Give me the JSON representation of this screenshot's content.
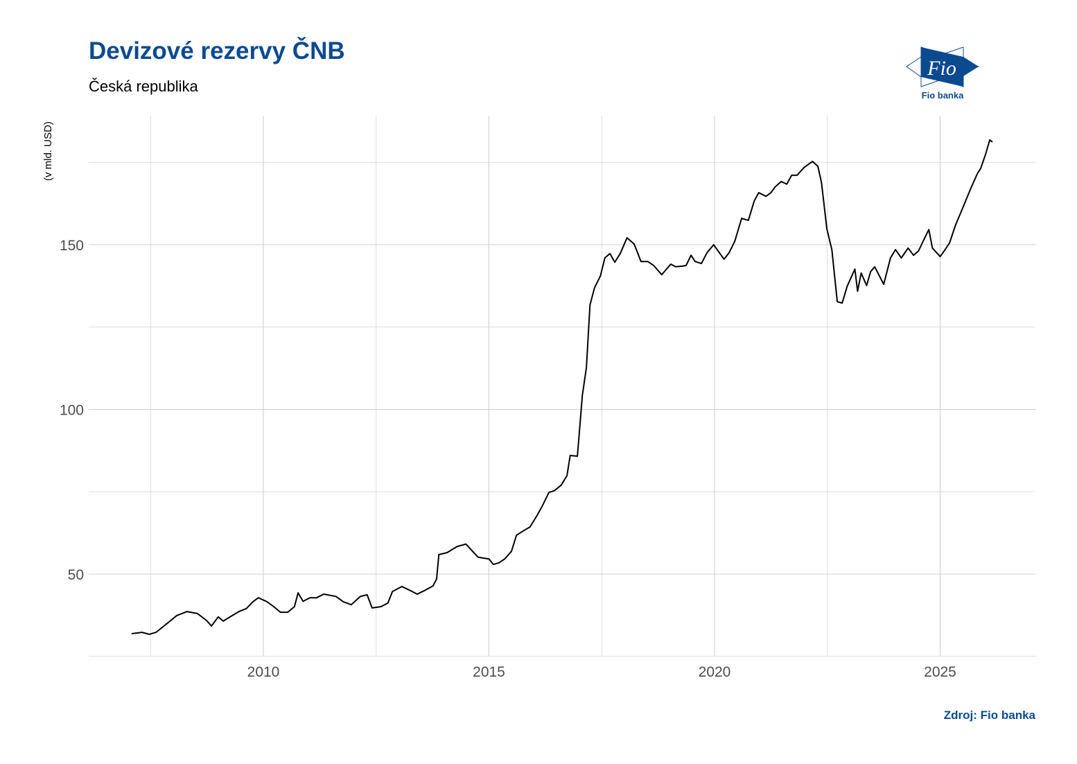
{
  "title": "Devizové rezervy ČNB",
  "subtitle": "Česká republika",
  "source": "Zdroj: Fio banka",
  "logo": {
    "text": "Fio",
    "caption": "Fio banka",
    "color": "#0b4a8f"
  },
  "chart_data": {
    "type": "line",
    "title": "Devizové rezervy ČNB",
    "subtitle": "Česká republika",
    "ylabel": "(v mld. USD)",
    "xlabel": "",
    "xlim": [
      2006.3,
      2027.3
    ],
    "ylim": [
      25.2,
      189
    ],
    "xticks": [
      2010,
      2015,
      2020,
      2025
    ],
    "xtick_labels": [
      "2010",
      "2015",
      "2020",
      "2025"
    ],
    "yticks": [
      50,
      100,
      150
    ],
    "ytick_labels": [
      "50",
      "100",
      "150"
    ],
    "grid": true,
    "line_color": "#000000",
    "x": [
      2007.08,
      2007.31,
      2007.47,
      2007.62,
      2007.85,
      2008.08,
      2008.31,
      2008.54,
      2008.74,
      2008.85,
      2009.0,
      2009.11,
      2009.31,
      2009.46,
      2009.62,
      2009.77,
      2009.89,
      2010.08,
      2010.23,
      2010.38,
      2010.54,
      2010.69,
      2010.77,
      2010.88,
      2011.03,
      2011.18,
      2011.34,
      2011.61,
      2011.77,
      2011.95,
      2012.15,
      2012.3,
      2012.41,
      2012.61,
      2012.76,
      2012.86,
      2013.07,
      2013.3,
      2013.41,
      2013.56,
      2013.76,
      2013.84,
      2013.89,
      2014.07,
      2014.3,
      2014.49,
      2014.76,
      2015.0,
      2015.1,
      2015.22,
      2015.35,
      2015.5,
      2015.61,
      2015.76,
      2015.91,
      2016.07,
      2016.18,
      2016.33,
      2016.45,
      2016.6,
      2016.73,
      2016.8,
      2016.96,
      2017.07,
      2017.16,
      2017.24,
      2017.34,
      2017.47,
      2017.57,
      2017.68,
      2017.79,
      2017.91,
      2018.06,
      2018.22,
      2018.37,
      2018.52,
      2018.65,
      2018.83,
      2019.03,
      2019.14,
      2019.29,
      2019.37,
      2019.48,
      2019.57,
      2019.71,
      2019.83,
      2019.98,
      2020.21,
      2020.32,
      2020.45,
      2020.6,
      2020.75,
      2020.88,
      2020.98,
      2021.14,
      2021.25,
      2021.34,
      2021.48,
      2021.6,
      2021.71,
      2021.83,
      2021.98,
      2022.17,
      2022.29,
      2022.37,
      2022.49,
      2022.6,
      2022.72,
      2022.83,
      2022.94,
      2023.11,
      2023.17,
      2023.25,
      2023.37,
      2023.46,
      2023.55,
      2023.75,
      2023.9,
      2024.01,
      2024.14,
      2024.29,
      2024.41,
      2024.52,
      2024.68,
      2024.75,
      2024.83,
      2025.0,
      2025.09,
      2025.21,
      2025.34,
      2025.52,
      2025.67,
      2025.83,
      2025.9,
      2026.01,
      2026.1,
      2026.16
    ],
    "values": [
      31.9,
      32.3,
      31.7,
      32.3,
      34.8,
      37.4,
      38.6,
      38.0,
      35.9,
      34.2,
      37.0,
      35.7,
      37.4,
      38.6,
      39.5,
      41.6,
      42.8,
      41.6,
      40.1,
      38.4,
      38.4,
      40.1,
      44.3,
      41.7,
      42.8,
      42.8,
      43.9,
      43.2,
      41.6,
      40.7,
      43.2,
      43.7,
      39.7,
      40.1,
      41.2,
      44.7,
      46.2,
      44.7,
      43.9,
      44.9,
      46.4,
      48.5,
      55.9,
      56.5,
      58.4,
      59.1,
      55.1,
      54.6,
      52.9,
      53.4,
      54.6,
      56.9,
      61.8,
      63.1,
      64.3,
      67.9,
      70.6,
      74.8,
      75.3,
      77.0,
      79.9,
      86.0,
      85.8,
      104.3,
      112.7,
      131.7,
      136.9,
      140.5,
      146.0,
      147.3,
      144.7,
      147.3,
      152.1,
      150.2,
      144.9,
      144.9,
      143.7,
      140.9,
      144.1,
      143.3,
      143.5,
      143.7,
      146.8,
      144.9,
      144.3,
      147.5,
      150.0,
      145.6,
      147.5,
      151.1,
      158.0,
      157.4,
      163.3,
      165.8,
      164.7,
      165.8,
      167.5,
      169.2,
      168.4,
      171.1,
      171.1,
      173.4,
      175.3,
      173.8,
      168.9,
      154.8,
      148.5,
      132.7,
      132.3,
      137.4,
      142.6,
      135.9,
      141.4,
      137.6,
      141.8,
      143.3,
      138.0,
      146.0,
      148.5,
      146.0,
      149.0,
      146.8,
      148.1,
      152.7,
      154.6,
      149.0,
      146.4,
      148.1,
      150.6,
      155.9,
      161.8,
      166.8,
      171.7,
      173.2,
      177.6,
      181.8,
      181.2
    ]
  }
}
